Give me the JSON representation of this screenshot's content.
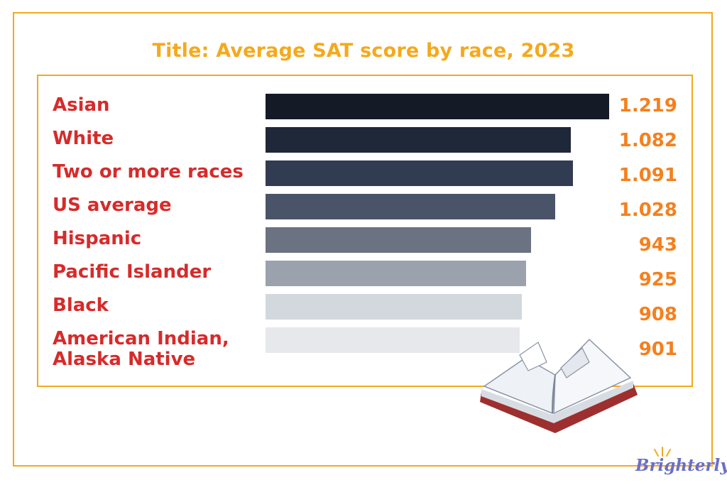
{
  "chart_data": {
    "type": "bar",
    "orientation": "horizontal",
    "title": "Title: Average SAT score by race, 2023",
    "categories": [
      "Asian",
      "White",
      "Two or more races",
      "US average",
      "Hispanic",
      "Pacific Islander",
      "Black",
      "American Indian,\nAlaska Native"
    ],
    "values": [
      1219,
      1082,
      1091,
      1028,
      943,
      925,
      908,
      901
    ],
    "value_labels": [
      "1.219",
      "1.082",
      "1.091",
      "1.028",
      "943",
      "925",
      "908",
      "901"
    ],
    "bar_colors": [
      "#141a26",
      "#1f2838",
      "#313c52",
      "#495468",
      "#6b7282",
      "#9ba2ae",
      "#d3d7de",
      "#e6e8ec"
    ],
    "xlim": [
      0,
      1219
    ],
    "grid": false,
    "legend": "none"
  },
  "colors": {
    "frame": "#f4a91d",
    "title": "#f4a91d",
    "category_text": "#d62b2b",
    "value_text": "#f4801f",
    "brand": "#6b6fc4"
  },
  "brand": {
    "name": "Brighterly"
  },
  "icons": {
    "decoration": "open-book-icon",
    "brand_mark": "sun-rays-icon"
  }
}
